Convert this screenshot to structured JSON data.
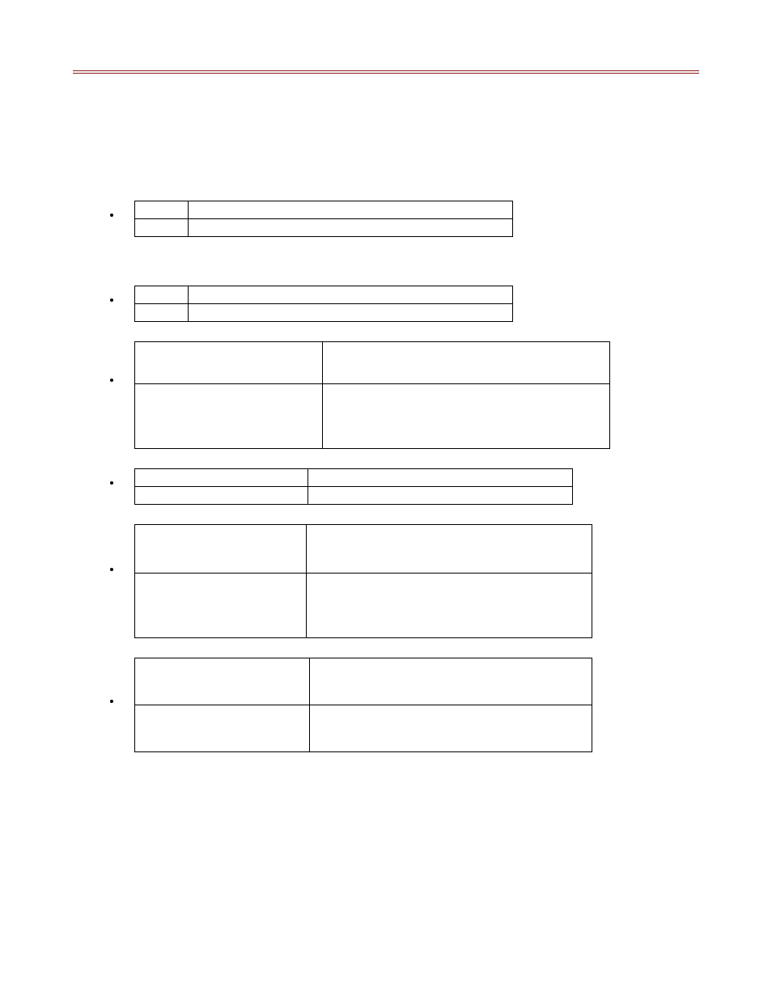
{
  "colors": {
    "rule": "#8b1a1a",
    "border": "#000000",
    "background": "#ffffff"
  },
  "bullets": [
    {
      "label": "",
      "table": {
        "kind": "A",
        "rows": [
          [
            "",
            ""
          ],
          [
            "",
            ""
          ]
        ]
      }
    },
    {
      "label": "",
      "table": {
        "kind": "B",
        "rows": [
          [
            "",
            ""
          ],
          [
            "",
            ""
          ]
        ]
      }
    },
    {
      "label": "",
      "table": {
        "kind": "C",
        "rows": [
          [
            "",
            ""
          ],
          [
            "",
            ""
          ]
        ]
      }
    },
    {
      "label": "",
      "table": {
        "kind": "D",
        "rows": [
          [
            "",
            ""
          ],
          [
            "",
            ""
          ]
        ]
      }
    },
    {
      "label": "",
      "table": {
        "kind": "E",
        "rows": [
          [
            "",
            ""
          ],
          [
            "",
            ""
          ]
        ]
      }
    },
    {
      "label": "",
      "table": {
        "kind": "F",
        "rows": [
          [
            "",
            ""
          ],
          [
            "",
            ""
          ]
        ]
      }
    }
  ]
}
